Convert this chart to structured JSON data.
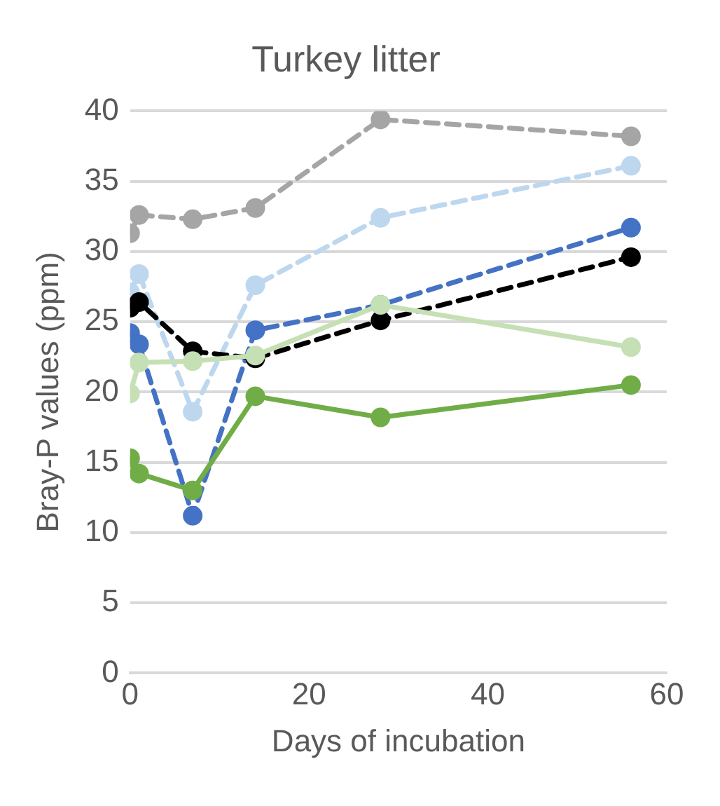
{
  "chart_data": {
    "type": "line",
    "title": "Turkey litter",
    "xlabel": "Days of incubation",
    "ylabel": "Bray-P values (ppm)",
    "x": [
      0,
      1,
      7,
      14,
      28,
      56
    ],
    "series": [
      {
        "color": "#a5a5a5",
        "line_style": "dashed",
        "values": [
          31.3,
          32.6,
          32.3,
          33.1,
          39.4,
          38.2
        ]
      },
      {
        "color": "#bdd7ee",
        "line_style": "dashed",
        "values": [
          27.1,
          28.4,
          18.6,
          27.6,
          32.4,
          36.1
        ]
      },
      {
        "color": "#4472c4",
        "line_style": "dashed",
        "values": [
          24.2,
          23.4,
          11.2,
          24.4,
          26.2,
          31.7
        ]
      },
      {
        "color": "#000000",
        "line_style": "dashed",
        "values": [
          26.0,
          26.4,
          22.9,
          22.4,
          25.1,
          29.6
        ]
      },
      {
        "color": "#c5e0b4",
        "line_style": "solid",
        "values": [
          19.9,
          22.1,
          22.2,
          22.6,
          26.2,
          23.2
        ]
      },
      {
        "color": "#70ad47",
        "line_style": "solid",
        "values": [
          15.3,
          14.2,
          13.0,
          19.7,
          18.2,
          20.5
        ]
      }
    ],
    "xlim": [
      0,
      60
    ],
    "xticks": [
      0,
      20,
      40,
      60
    ],
    "ylim": [
      0,
      40
    ],
    "yticks": [
      0,
      5,
      10,
      15,
      20,
      25,
      30,
      35,
      40
    ],
    "grid": "y",
    "legend": false,
    "marker": "circle"
  }
}
